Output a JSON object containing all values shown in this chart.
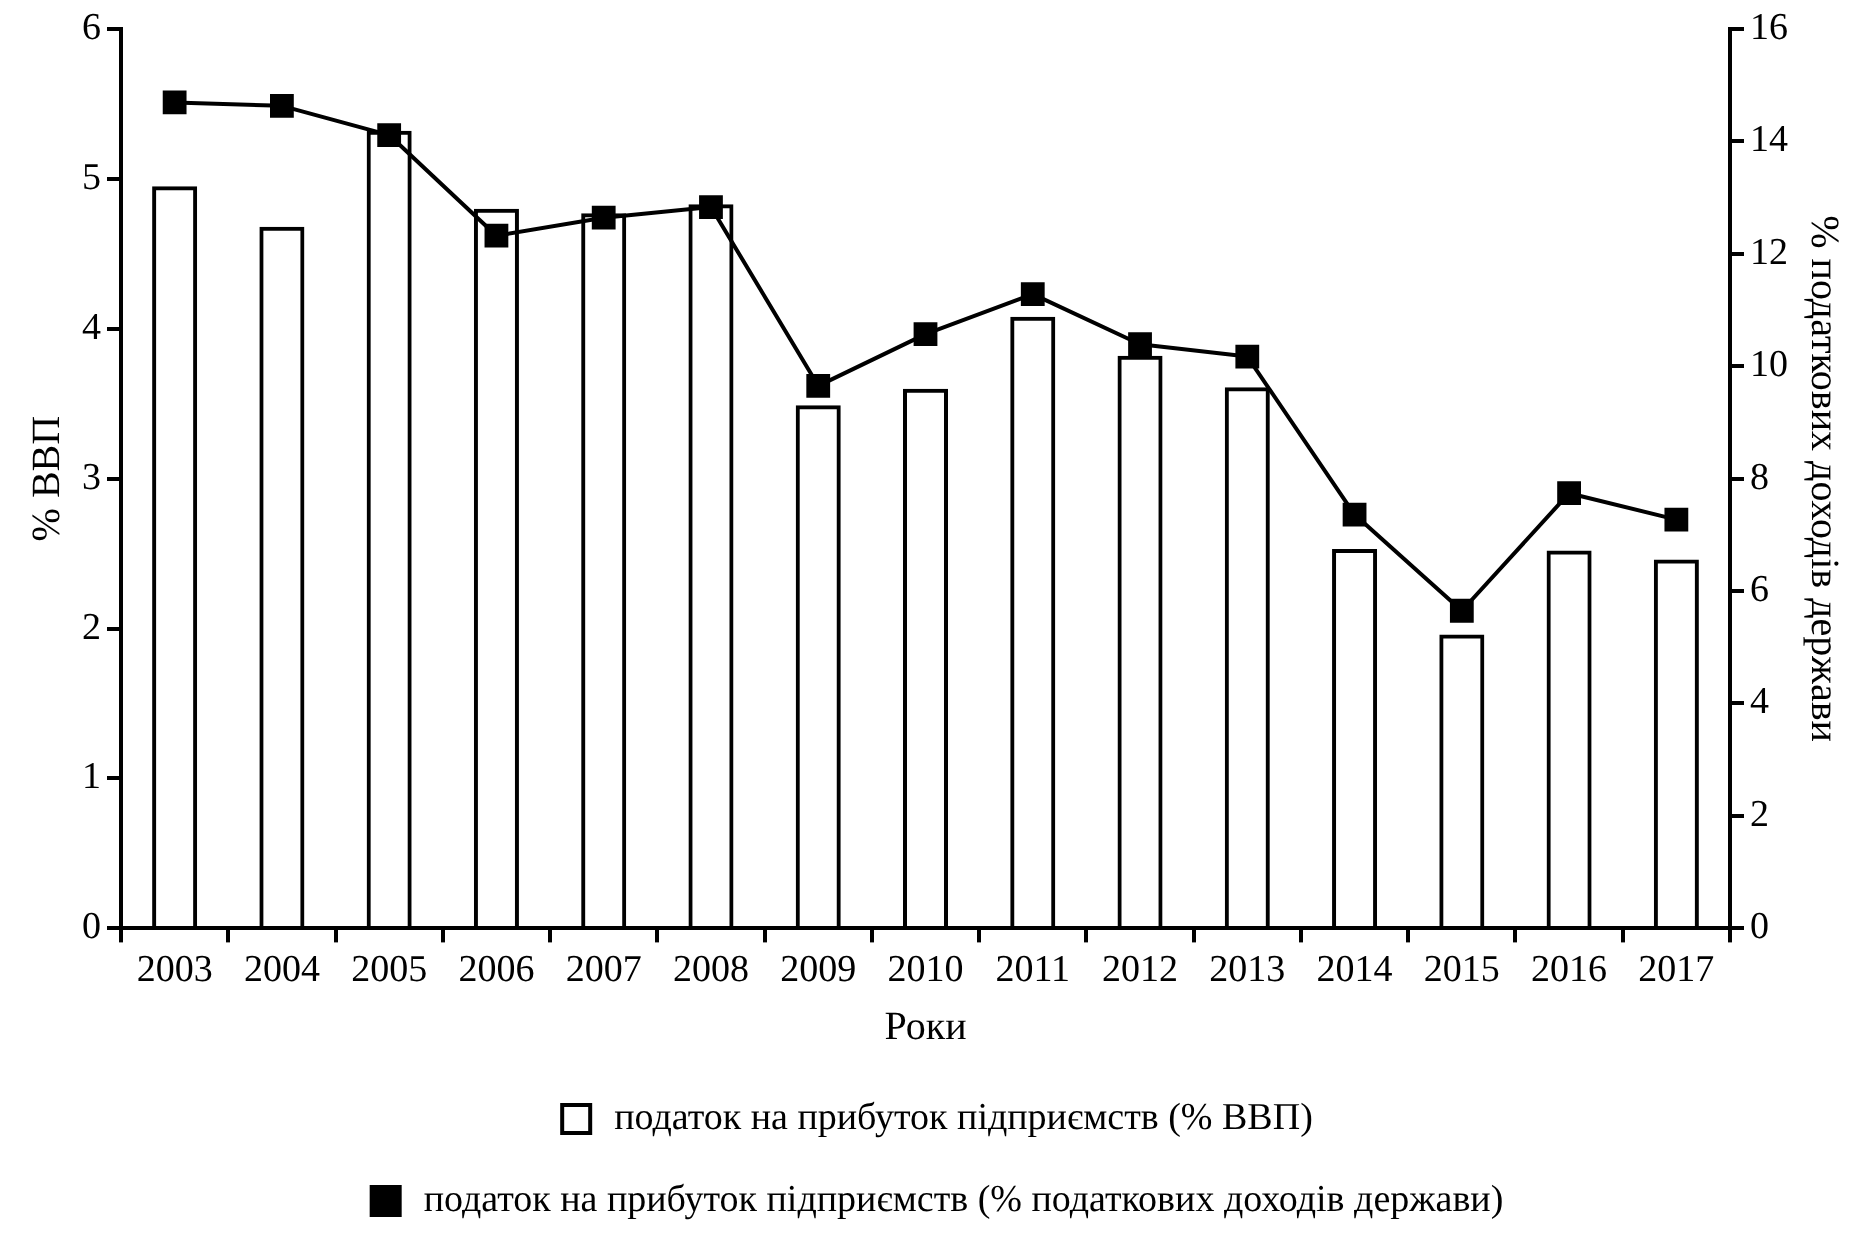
{
  "chart_data": {
    "type": "bar",
    "xlabel": "Роки",
    "ylabel": "% ВВП",
    "y2label": "% податкових доходів держави",
    "categories": [
      "2003",
      "2004",
      "2005",
      "2006",
      "2007",
      "2008",
      "2009",
      "2010",
      "2011",
      "2012",
      "2013",
      "2014",
      "2015",
      "2016",
      "2017"
    ],
    "series": [
      {
        "name": "податок на прибуток підприємств (% ВВП)",
        "color": "#000000",
        "values": [
          4.95,
          4.68,
          5.32,
          4.8,
          4.77,
          4.83,
          3.49,
          3.6,
          4.08,
          3.82,
          3.61,
          2.53,
          1.96,
          2.52,
          2.46
        ]
      },
      {
        "name": "податок на прибуток підприємств (% податкових доходів держави)",
        "type": "line",
        "axis": "y2",
        "color": "#000000",
        "marker": "square",
        "values": [
          14.69,
          14.63,
          14.11,
          12.32,
          12.64,
          12.83,
          9.65,
          10.57,
          11.28,
          10.39,
          10.17,
          7.36,
          5.65,
          7.74,
          7.27
        ]
      }
    ],
    "ylim": [
      0,
      6
    ],
    "yticks": [
      0,
      1,
      2,
      3,
      4,
      5,
      6
    ],
    "y2lim": [
      0,
      16
    ],
    "y2ticks": [
      0,
      2,
      4,
      6,
      8,
      10,
      12,
      14,
      16
    ],
    "grid": false,
    "legend": "bottom"
  }
}
